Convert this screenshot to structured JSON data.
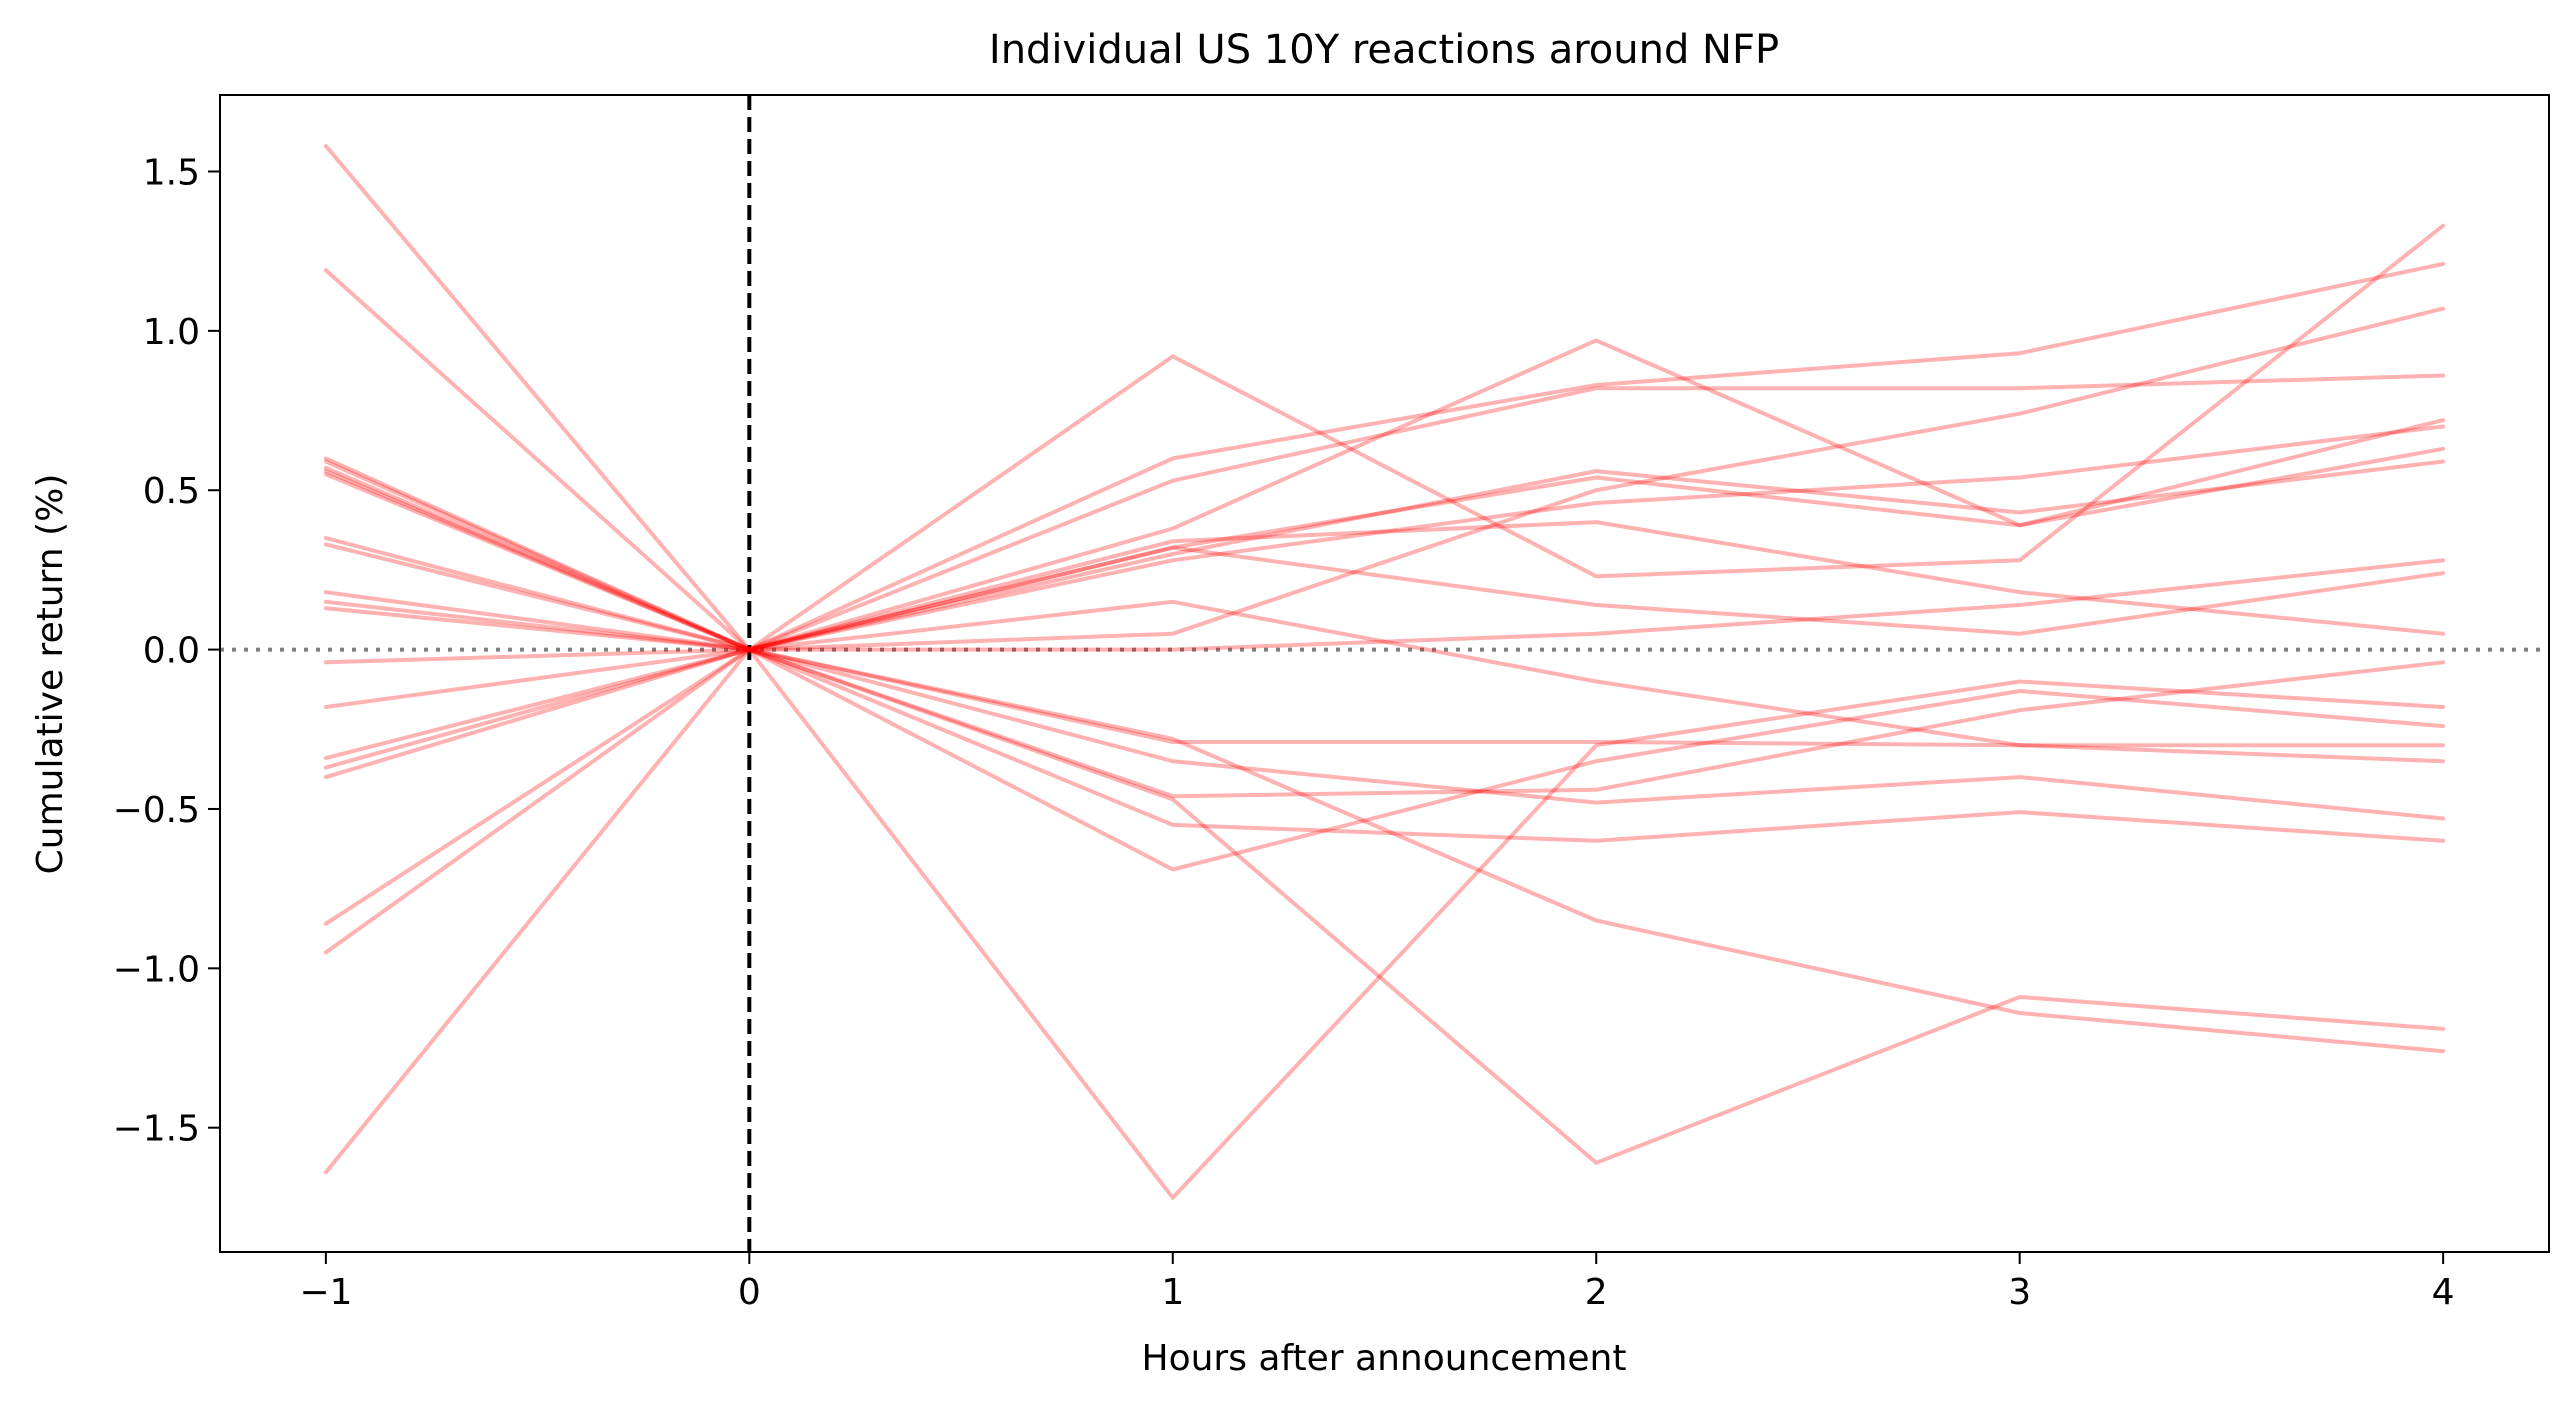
{
  "chart_data": {
    "type": "line",
    "title": "Individual US 10Y reactions around NFP",
    "xlabel": "Hours after announcement",
    "ylabel": "Cumulative return (%)",
    "x": [
      -1,
      0,
      1,
      2,
      3,
      4
    ],
    "xticks": [
      "−1",
      "0",
      "1",
      "2",
      "3",
      "4"
    ],
    "yticks": [
      "−1.5",
      "−1.0",
      "−0.5",
      "0.0",
      "0.5",
      "1.0",
      "1.5"
    ],
    "xlim": [
      -1.25,
      4.25
    ],
    "ylim": [
      -1.89,
      1.74
    ],
    "grid": false,
    "line_color": "#ff0000",
    "line_opacity": 0.3,
    "event_line": {
      "x": 0,
      "style": "dashed",
      "color": "#000000"
    },
    "zero_line": {
      "y": 0,
      "style": "dotted",
      "color": "#808080"
    },
    "series": [
      {
        "values": [
          1.58,
          0,
          -0.47,
          -1.61,
          -1.09,
          -1.19
        ]
      },
      {
        "values": [
          1.19,
          0,
          0.92,
          0.23,
          0.28,
          1.33
        ]
      },
      {
        "values": [
          0.6,
          0,
          -0.28,
          -0.85,
          -1.14,
          -1.26
        ]
      },
      {
        "values": [
          0.59,
          0,
          -0.46,
          -0.44,
          -0.19,
          -0.04
        ]
      },
      {
        "values": [
          0.56,
          0,
          -0.29,
          -0.29,
          -0.3,
          -0.35
        ]
      },
      {
        "values": [
          0.55,
          0,
          -0.35,
          -0.48,
          -0.4,
          -0.53
        ]
      },
      {
        "values": [
          0.35,
          0,
          0.6,
          0.83,
          0.93,
          1.21
        ]
      },
      {
        "values": [
          0.33,
          0,
          0.53,
          0.82,
          0.82,
          0.86
        ]
      },
      {
        "values": [
          0.18,
          0,
          0.32,
          0.54,
          0.39,
          0.72
        ]
      },
      {
        "values": [
          0.15,
          0,
          0.38,
          0.97,
          0.39,
          0.63
        ]
      },
      {
        "values": [
          0.13,
          0,
          0.28,
          0.46,
          0.54,
          0.7
        ]
      },
      {
        "values": [
          -0.04,
          0,
          0.05,
          0.5,
          0.74,
          1.07
        ]
      },
      {
        "values": [
          -0.18,
          0,
          0.34,
          0.4,
          0.18,
          0.05
        ]
      },
      {
        "values": [
          -0.34,
          0,
          0.32,
          0.14,
          0.05,
          0.24
        ]
      },
      {
        "values": [
          -0.37,
          0,
          0.15,
          -0.1,
          -0.3,
          -0.3
        ]
      },
      {
        "values": [
          -0.4,
          0,
          -0.55,
          -0.6,
          -0.51,
          -0.6
        ]
      },
      {
        "values": [
          -0.86,
          0,
          -0.69,
          -0.35,
          -0.13,
          -0.24
        ]
      },
      {
        "values": [
          -0.95,
          0,
          0.0,
          0.05,
          0.14,
          0.28
        ]
      },
      {
        "values": [
          -1.64,
          0,
          -1.72,
          -0.3,
          -0.1,
          -0.18
        ]
      },
      {
        "values": [
          0.57,
          0,
          0.3,
          0.56,
          0.43,
          0.59
        ]
      }
    ]
  }
}
